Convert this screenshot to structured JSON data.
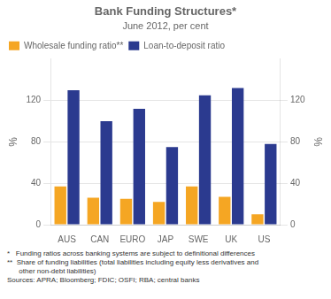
{
  "chart_data": {
    "type": "bar",
    "title": "Bank Funding Structures*",
    "subtitle": "June 2012, per cent",
    "categories": [
      "AUS",
      "CAN",
      "EURO",
      "JAP",
      "SWE",
      "UK",
      "US"
    ],
    "series": [
      {
        "name": "Wholesale funding ratio**",
        "color": "#F5A623",
        "values": [
          37,
          26,
          25,
          22,
          37,
          27,
          10
        ]
      },
      {
        "name": "Loan-to-deposit ratio",
        "color": "#2B3A8F",
        "values": [
          130,
          100,
          112,
          75,
          125,
          132,
          78
        ]
      }
    ],
    "ylabel": "%",
    "y2label": "%",
    "ylim": [
      0,
      160
    ],
    "yticks": [
      0,
      40,
      80,
      120
    ],
    "y2lim": [
      0,
      160
    ],
    "y2ticks": [
      0,
      40,
      80,
      120
    ],
    "grid": true,
    "legend": "upper left",
    "annotations": [
      "*   Funding ratios across banking systems are subject to definitional differences",
      "**  Share of funding liabilities (total liabilities including equity less derivatives and",
      "      other non-debt liabilities)",
      "Sources: APRA; Bloomberg; FDIC; OSFI; RBA; central banks"
    ]
  }
}
